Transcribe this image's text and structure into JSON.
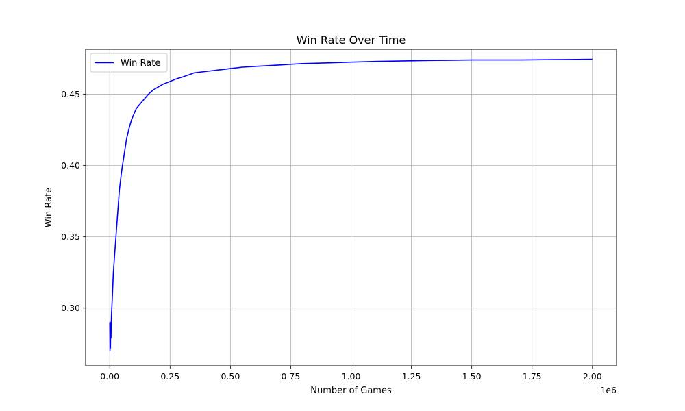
{
  "chart_data": {
    "type": "line",
    "title": "Win Rate Over Time",
    "xlabel": "Number of Games",
    "ylabel": "Win Rate",
    "x_offset_text": "1e6",
    "xlim": [
      -0.1,
      2.1
    ],
    "ylim": [
      0.2595,
      0.4815
    ],
    "x_ticks": [
      0.0,
      0.25,
      0.5,
      0.75,
      1.0,
      1.25,
      1.5,
      1.75,
      2.0
    ],
    "x_tick_labels": [
      "0.00",
      "0.25",
      "0.50",
      "0.75",
      "1.00",
      "1.25",
      "1.50",
      "1.75",
      "2.00"
    ],
    "y_ticks": [
      0.3,
      0.35,
      0.4,
      0.45
    ],
    "y_tick_labels": [
      "0.30",
      "0.35",
      "0.40",
      "0.45"
    ],
    "grid": true,
    "legend": {
      "position": "top-left",
      "entries": [
        "Win Rate"
      ]
    },
    "series": [
      {
        "name": "Win Rate",
        "color": "#0000ff",
        "x": [
          0.0,
          0.001,
          0.002,
          0.003,
          0.004,
          0.005,
          0.007,
          0.01,
          0.015,
          0.02,
          0.03,
          0.04,
          0.05,
          0.06,
          0.07,
          0.08,
          0.09,
          0.1,
          0.11,
          0.12,
          0.14,
          0.16,
          0.18,
          0.2,
          0.22,
          0.25,
          0.28,
          0.3,
          0.35,
          0.4,
          0.45,
          0.5,
          0.55,
          0.6,
          0.65,
          0.7,
          0.75,
          0.8,
          0.9,
          1.0,
          1.1,
          1.2,
          1.3,
          1.4,
          1.5,
          1.6,
          1.7,
          1.8,
          1.9,
          2.0
        ],
        "y": [
          0.29,
          0.27,
          0.285,
          0.272,
          0.29,
          0.279,
          0.295,
          0.305,
          0.325,
          0.337,
          0.36,
          0.383,
          0.397,
          0.408,
          0.419,
          0.426,
          0.432,
          0.436,
          0.44,
          0.442,
          0.446,
          0.45,
          0.453,
          0.455,
          0.457,
          0.459,
          0.461,
          0.462,
          0.465,
          0.466,
          0.467,
          0.468,
          0.469,
          0.4695,
          0.47,
          0.4705,
          0.471,
          0.4715,
          0.472,
          0.4725,
          0.473,
          0.4733,
          0.4736,
          0.4738,
          0.474,
          0.474,
          0.474,
          0.4742,
          0.4743,
          0.4745
        ]
      }
    ]
  }
}
